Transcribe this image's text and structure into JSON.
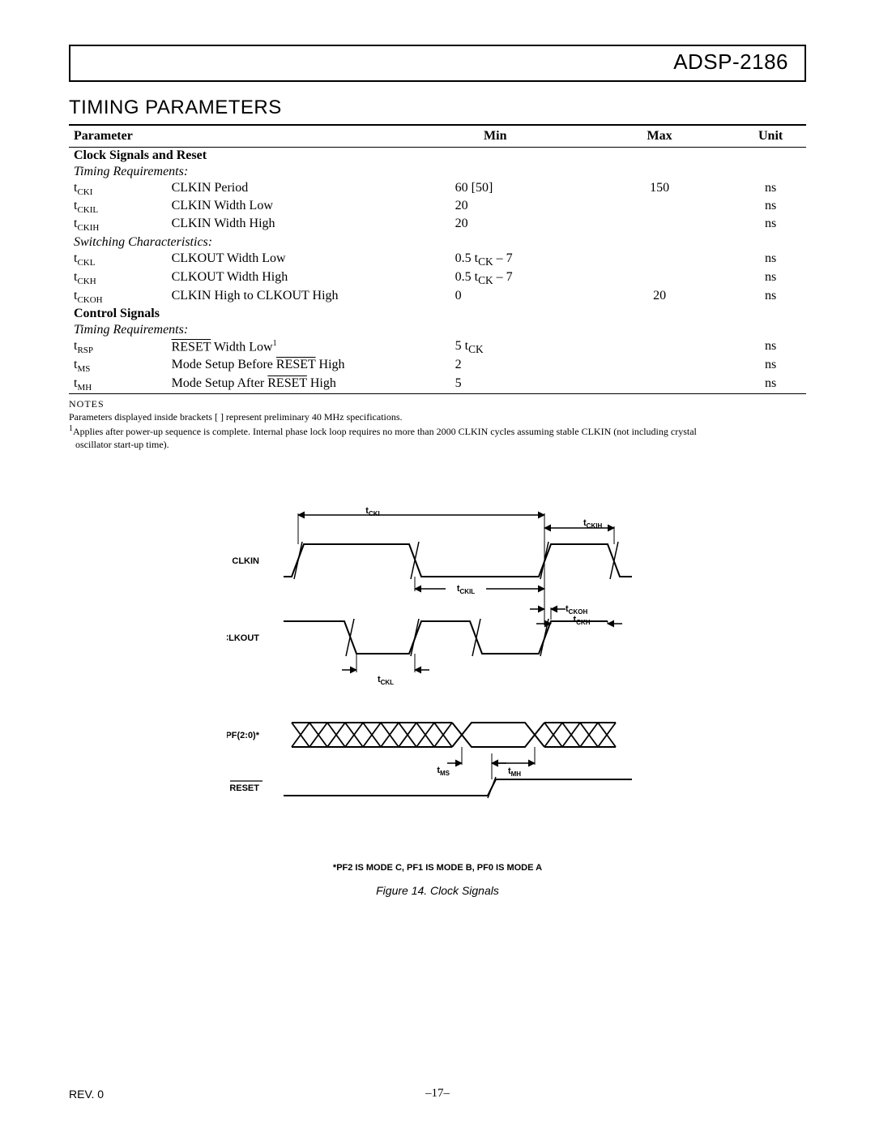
{
  "header": {
    "product": "ADSP-2186"
  },
  "section_title": "TIMING PARAMETERS",
  "columns": {
    "param": "Parameter",
    "min": "Min",
    "max": "Max",
    "unit": "Unit"
  },
  "groups": [
    {
      "title": "Clock Signals and Reset",
      "blocks": [
        {
          "subhead": "Timing Requirements:",
          "rows": [
            {
              "sym": "t",
              "sub": "CKI",
              "desc": "CLKIN Period",
              "min": "60 [50]",
              "max": "150",
              "unit": "ns"
            },
            {
              "sym": "t",
              "sub": "CKIL",
              "desc": "CLKIN Width Low",
              "min": "20",
              "max": "",
              "unit": "ns"
            },
            {
              "sym": "t",
              "sub": "CKIH",
              "desc": "CLKIN Width High",
              "min": "20",
              "max": "",
              "unit": "ns"
            }
          ]
        },
        {
          "subhead": "Switching Characteristics:",
          "rows": [
            {
              "sym": "t",
              "sub": "CKL",
              "desc": "CLKOUT Width Low",
              "min_html": "0.5 t<sub>CK</sub> – 7",
              "max": "",
              "unit": "ns"
            },
            {
              "sym": "t",
              "sub": "CKH",
              "desc": "CLKOUT Width High",
              "min_html": "0.5 t<sub>CK</sub> – 7",
              "max": "",
              "unit": "ns"
            },
            {
              "sym": "t",
              "sub": "CKOH",
              "desc": "CLKIN High to CLKOUT High",
              "min": "0",
              "max": "20",
              "unit": "ns"
            }
          ]
        }
      ]
    },
    {
      "title": "Control Signals",
      "blocks": [
        {
          "subhead": "Timing Requirements:",
          "rows": [
            {
              "sym": "t",
              "sub": "RSP",
              "desc_html": "<span class=\"overline\">RESET</span> Width Low<span class=\"sup1\">1</span>",
              "min_html": "5 t<sub>CK</sub>",
              "max": "",
              "unit": "ns"
            },
            {
              "sym": "t",
              "sub": "MS",
              "desc_html": "Mode Setup Before <span class=\"overline\">RESET</span> High",
              "min": "2",
              "max": "",
              "unit": "ns"
            },
            {
              "sym": "t",
              "sub": "MH",
              "desc_html": "Mode Setup After <span class=\"overline\">RESET</span> High",
              "min": "5",
              "max": "",
              "unit": "ns"
            }
          ]
        }
      ]
    }
  ],
  "notes": {
    "header": "NOTES",
    "line1": "Parameters displayed inside brackets [  ] represent preliminary 40 MHz specifications.",
    "line2a": "Applies after power-up sequence is complete. Internal phase lock loop requires no more than 2000 CLKIN cycles assuming stable CLKIN (not including crystal",
    "line2b": "oscillator start-up time)."
  },
  "figure": {
    "signals": {
      "clkin": "CLKIN",
      "clkout": "CLKOUT",
      "pf": "PF(2:0)*",
      "reset": "RESET"
    },
    "labels": {
      "tCKI": "CKI",
      "tCKIH": "CKIH",
      "tCKIL": "CKIL",
      "tCKOH": "CKOH",
      "tCKH": "CKH",
      "tCKL": "CKL",
      "tMS": "MS",
      "tMH": "MH"
    },
    "footnote": "*PF2 IS MODE C, PF1 IS MODE B, PF0 IS MODE A",
    "caption": "Figure 14.  Clock Signals",
    "colors": {
      "stroke": "#000000",
      "fill_bg": "#ffffff"
    },
    "stroke_width": 2
  },
  "footer": {
    "rev": "REV. 0",
    "page": "–17–"
  }
}
